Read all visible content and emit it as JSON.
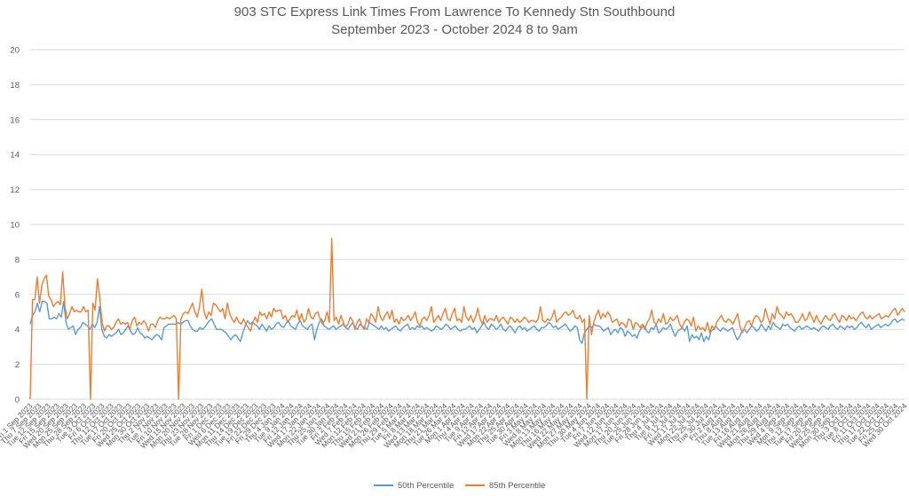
{
  "chart_data": {
    "type": "line",
    "title": "903 STC Express Link Times From Lawrence To Kennedy Stn Southbound",
    "subtitle": "September 2023 - October 2024 8 to 9am",
    "xlabel": "",
    "ylabel": "",
    "ylim": [
      0,
      20
    ],
    "yticks": [
      0,
      2,
      4,
      6,
      8,
      10,
      12,
      14,
      16,
      18,
      20
    ],
    "grid": true,
    "legend": "bottom-center",
    "colors": {
      "p50": "#5b9bd5",
      "p85": "#ed7d31",
      "grid": "#d9d9d9",
      "text": "#595959"
    },
    "xtick_labels": [
      "Fri 1 Sep 2023",
      "Thu 7 Sep 2023",
      "Tue 12 Sep 2023",
      "Fri 15 Sep 2023",
      "Wed 20 Sep 2023",
      "Mon 25 Sep 2023",
      "Thu 28 Sep 2023",
      "Tue 3 Oct 2023",
      "Fri 6 Oct 2023",
      "Thu 12 Oct 2023",
      "Tue 17 Oct 2023",
      "Fri 20 Oct 2023",
      "Wed 25 Oct 2023",
      "Mon 30 Oct 2023",
      "Thu 2 Nov 2023",
      "Tue 7 Nov 2023",
      "Fri 10 Nov 2023",
      "Wed 15 Nov 2023",
      "Mon 20 Nov 2023",
      "Thu 23 Nov 2023",
      "Tue 28 Nov 2023",
      "Fri 1 Dec 2023",
      "Wed 6 Dec 2023",
      "Mon 11 Dec 2023",
      "Thu 14 Dec 2023",
      "Tue 19 Dec 2023",
      "Fri 22 Dec 2023",
      "Fri 29 Dec 2023",
      "Thu 4 Jan 2024",
      "Tue 9 Jan 2024",
      "Fri 12 Jan 2024",
      "Wed 17 Jan 2024",
      "Mon 22 Jan 2024",
      "Thu 25 Jan 2024",
      "Tue 30 Jan 2024",
      "Fri 2 Feb 2024",
      "Wed 7 Feb 2024",
      "Mon 12 Feb 2024",
      "Thu 15 Feb 2024",
      "Wed 21 Feb 2024",
      "Mon 26 Feb 2024",
      "Thu 29 Feb 2024",
      "Tue 5 Mar 2024",
      "Fri 8 Mar 2024",
      "Wed 13 Mar 2024",
      "Mon 18 Mar 2024",
      "Thu 21 Mar 2024",
      "Tue 26 Mar 2024",
      "Mon 1 Apr 2024",
      "Thu 4 Apr 2024",
      "Tue 9 Apr 2024",
      "Fri 12 Apr 2024",
      "Wed 17 Apr 2024",
      "Mon 22 Apr 2024",
      "Thu 25 Apr 2024",
      "Tue 30 Apr 2024",
      "Fri 3 May 2024",
      "Wed 8 May 2024",
      "Mon 13 May 2024",
      "Thu 16 May 2024",
      "Wed 22 May 2024",
      "Mon 27 May 2024",
      "Thu 30 May 2024",
      "Tue 4 Jun 2024",
      "Fri 7 Jun 2024",
      "Wed 12 Jun 2024",
      "Mon 17 Jun 2024",
      "Thu 20 Jun 2024",
      "Tue 25 Jun 2024",
      "Fri 28 Jun 2024",
      "Thu 4 Jul 2024",
      "Tue 9 Jul 2024",
      "Fri 12 Jul 2024",
      "Wed 17 Jul 2024",
      "Mon 22 Jul 2024",
      "Thu 25 Jul 2024",
      "Tue 30 Jul 2024",
      "Fri 2 Aug 2024",
      "Thu 8 Aug 2024",
      "Tue 13 Aug 2024",
      "Fri 16 Aug 2024",
      "Wed 21 Aug 2024",
      "Mon 26 Aug 2024",
      "Thu 29 Aug 2024",
      "Wed 4 Sep 2024",
      "Mon 9 Sep 2024",
      "Thu 12 Sep 2024",
      "Tue 17 Sep 2024",
      "Fri 20 Sep 2024",
      "Wed 25 Sep 2024",
      "Mon 30 Sep 2024",
      "Thu 3 Oct 2024",
      "Tue 8 Oct 2024",
      "Fri 11 Oct 2024",
      "Thu 17 Oct 2024",
      "Tue 22 Oct 2024",
      "Fri 25 Oct 2024",
      "Wed 30 Oct 2024"
    ],
    "series": [
      {
        "name": "50th Percentile",
        "values": [
          4.3,
          4.8,
          5.0,
          5.5,
          5.0,
          5.6,
          5.6,
          5.5,
          4.6,
          4.6,
          4.7,
          4.6,
          4.9,
          4.7,
          5.6,
          4.4,
          4.0,
          4.1,
          4.2,
          3.7,
          4.0,
          4.1,
          4.4,
          4.3,
          4.2,
          4.0,
          4.3,
          4.1,
          4.4,
          5.3,
          4.0,
          3.6,
          3.5,
          3.7,
          3.6,
          3.7,
          3.8,
          4.0,
          3.7,
          3.8,
          4.0,
          4.2,
          3.9,
          3.7,
          3.8,
          4.1,
          3.8,
          3.7,
          3.5,
          3.6,
          3.5,
          3.4,
          3.6,
          3.7,
          3.6,
          3.4,
          4.1,
          4.2,
          4.3,
          4.3,
          4.3,
          4.3,
          4.4,
          4.3,
          4.4,
          4.5,
          4.5,
          4.2,
          4.0,
          3.9,
          3.9,
          4.1,
          4.0,
          4.1,
          4.3,
          4.5,
          4.6,
          4.3,
          4.0,
          4.0,
          4.0,
          3.9,
          3.8,
          3.6,
          3.4,
          3.6,
          3.7,
          3.5,
          3.3,
          3.8,
          4.2,
          4.5,
          4.3,
          4.4,
          4.3,
          4.2,
          4.0,
          4.3,
          4.1,
          3.9,
          4.2,
          4.0,
          4.1,
          4.3,
          4.4,
          4.2,
          4.1,
          4.3,
          4.5,
          4.2,
          4.1,
          4.0,
          4.3,
          4.5,
          4.2,
          4.1,
          4.0,
          4.2,
          4.3,
          3.4,
          4.0,
          4.4,
          4.6,
          4.2,
          4.1,
          4.0,
          4.1,
          4.2,
          4.0,
          4.1,
          4.2,
          4.3,
          4.1,
          4.0,
          4.2,
          4.4,
          4.1,
          4.0,
          4.3,
          4.2,
          4.1,
          4.0,
          4.4,
          4.3,
          4.2,
          4.1,
          4.0,
          4.2,
          4.0,
          4.1,
          3.9,
          4.0,
          4.1,
          4.2,
          4.0,
          3.9,
          4.1,
          4.2,
          4.3,
          4.0,
          4.1,
          4.0,
          4.2,
          4.1,
          4.2,
          4.0,
          4.1,
          4.0,
          3.9,
          4.0,
          4.2,
          4.1,
          4.0,
          4.1,
          4.3,
          4.2,
          4.0,
          4.1,
          4.2,
          4.0,
          3.9,
          4.0,
          4.0,
          4.1,
          4.2,
          4.0,
          4.1,
          3.8,
          4.0,
          4.2,
          4.4,
          4.1,
          4.0,
          4.3,
          4.2,
          4.0,
          4.1,
          4.3,
          4.0,
          3.9,
          4.1,
          4.2,
          4.0,
          3.8,
          4.1,
          4.2,
          4.0,
          4.1,
          3.9,
          4.0,
          4.1,
          4.2,
          4.0,
          3.9,
          4.1,
          4.1,
          4.2,
          4.4,
          4.3,
          4.1,
          4.2,
          4.0,
          4.1,
          4.2,
          4.3,
          4.1,
          3.9,
          4.0,
          4.2,
          4.1,
          3.4,
          3.2,
          3.8,
          4.0,
          4.2,
          4.1,
          4.3,
          4.2,
          4.2,
          4.1,
          3.9,
          4.0,
          4.1,
          3.7,
          3.9,
          4.0,
          3.8,
          4.1,
          4.0,
          3.6,
          3.9,
          3.8,
          3.6,
          3.7,
          3.5,
          3.9,
          4.1,
          4.2,
          3.9,
          3.8,
          4.1,
          4.0,
          4.3,
          3.8,
          3.9,
          4.1,
          4.0,
          4.1,
          4.3,
          3.9,
          3.6,
          3.9,
          4.0,
          4.1,
          3.9,
          4.2,
          3.3,
          3.7,
          3.5,
          3.6,
          3.4,
          3.8,
          3.3,
          3.6,
          3.4,
          3.9,
          4.0,
          4.2,
          4.0,
          3.9,
          4.1,
          4.0,
          3.9,
          4.0,
          4.1,
          3.7,
          3.4,
          3.6,
          3.9,
          4.0,
          3.8,
          4.0,
          4.2,
          4.1,
          3.9,
          4.0,
          4.3,
          4.1,
          3.9,
          4.2,
          4.0,
          4.4,
          4.2,
          4.1,
          4.0,
          4.3,
          4.2,
          4.3,
          4.1,
          4.0,
          3.9,
          4.1,
          4.2,
          4.0,
          4.1,
          4.2,
          4.1,
          4.0,
          4.1,
          4.0,
          3.9,
          4.1,
          4.2,
          4.1,
          4.0,
          4.2,
          4.3,
          4.1,
          4.0,
          4.2,
          4.1,
          4.0,
          4.2,
          4.1,
          4.2,
          4.0,
          4.1,
          4.3,
          4.4,
          4.2,
          4.1,
          4.3,
          4.0,
          4.1,
          4.2,
          4.3,
          4.1,
          4.2,
          4.3,
          4.2,
          4.3,
          4.5,
          4.6,
          4.4,
          4.5,
          4.6,
          4.5
        ]
      },
      {
        "name": "85th Percentile",
        "values": [
          0.0,
          5.7,
          5.7,
          7.0,
          5.5,
          6.5,
          6.9,
          7.1,
          5.9,
          5.7,
          5.3,
          5.5,
          5.6,
          5.4,
          7.3,
          5.3,
          4.6,
          4.9,
          5.3,
          5.0,
          5.1,
          5.0,
          5.0,
          5.3,
          5.0,
          5.1,
          0.0,
          5.5,
          5.1,
          6.9,
          5.8,
          4.4,
          3.9,
          4.2,
          4.2,
          4.0,
          4.1,
          4.4,
          4.6,
          4.3,
          4.4,
          4.3,
          4.4,
          4.0,
          4.5,
          4.7,
          4.2,
          4.4,
          4.3,
          4.5,
          4.3,
          3.9,
          4.3,
          4.3,
          4.1,
          4.5,
          4.7,
          4.6,
          4.6,
          4.7,
          4.6,
          4.7,
          4.8,
          4.6,
          0.0,
          4.6,
          4.9,
          5.0,
          4.9,
          5.2,
          5.5,
          5.0,
          4.7,
          5.3,
          6.3,
          5.0,
          4.6,
          5.0,
          4.8,
          5.5,
          5.4,
          5.2,
          5.0,
          5.2,
          4.6,
          5.5,
          4.9,
          4.6,
          4.4,
          4.7,
          4.4,
          4.3,
          4.6,
          4.3,
          4.1,
          3.9,
          4.4,
          4.7,
          4.4,
          5.0,
          4.8,
          4.9,
          4.6,
          5.0,
          4.7,
          5.2,
          5.0,
          5.1,
          5.1,
          4.6,
          4.8,
          4.4,
          4.6,
          4.8,
          4.7,
          5.1,
          4.5,
          4.9,
          4.4,
          4.6,
          5.2,
          4.7,
          4.6,
          4.9,
          5.0,
          4.6,
          4.3,
          4.5,
          5.0,
          4.4,
          9.2,
          4.5,
          4.7,
          4.3,
          4.8,
          4.4,
          4.1,
          4.3,
          4.7,
          4.5,
          4.0,
          4.4,
          4.6,
          4.2,
          4.0,
          4.6,
          4.4,
          4.9,
          4.7,
          4.4,
          5.3,
          4.7,
          4.5,
          4.8,
          5.0,
          4.6,
          5.1,
          4.4,
          4.6,
          4.3,
          4.7,
          4.5,
          4.6,
          4.8,
          4.5,
          4.7,
          5.0,
          4.4,
          4.2,
          4.6,
          4.7,
          4.5,
          4.8,
          5.3,
          4.4,
          4.6,
          4.8,
          4.5,
          4.9,
          5.2,
          4.6,
          4.5,
          4.9,
          5.2,
          4.5,
          4.6,
          4.4,
          5.3,
          4.7,
          4.5,
          4.8,
          4.4,
          4.7,
          5.2,
          4.6,
          4.3,
          4.8,
          4.4,
          4.6,
          4.6,
          4.5,
          4.8,
          4.4,
          4.6,
          4.7,
          4.5,
          4.3,
          4.7,
          4.6,
          4.4,
          4.6,
          4.4,
          4.5,
          4.7,
          4.6,
          4.4,
          4.5,
          4.5,
          4.4,
          4.6,
          5.3,
          4.5,
          4.4,
          4.6,
          4.5,
          4.7,
          5.1,
          4.4,
          4.6,
          4.7,
          4.9,
          5.0,
          4.8,
          4.9,
          5.1,
          4.7,
          4.6,
          4.8,
          4.4,
          4.6,
          0.0,
          4.8,
          3.7,
          4.4,
          4.8,
          5.1,
          4.6,
          4.9,
          4.7,
          5.0,
          4.8,
          4.4,
          4.5,
          4.6,
          4.2,
          4.4,
          4.3,
          4.1,
          4.6,
          4.5,
          4.0,
          4.4,
          4.3,
          4.1,
          4.3,
          4.0,
          4.4,
          4.6,
          5.1,
          4.4,
          4.3,
          4.6,
          4.4,
          4.9,
          4.3,
          4.4,
          4.7,
          4.5,
          4.6,
          4.8,
          4.3,
          4.1,
          4.4,
          4.6,
          4.5,
          4.2,
          4.7,
          3.9,
          4.2,
          4.0,
          4.1,
          3.9,
          4.4,
          3.8,
          4.2,
          4.0,
          4.4,
          4.6,
          4.8,
          4.5,
          4.4,
          4.6,
          4.5,
          4.3,
          4.6,
          4.9,
          4.2,
          3.8,
          4.1,
          4.4,
          4.5,
          4.2,
          4.6,
          4.8,
          4.7,
          4.4,
          4.5,
          5.2,
          4.7,
          4.3,
          4.9,
          4.6,
          5.3,
          4.9,
          4.8,
          4.6,
          5.0,
          4.8,
          4.9,
          4.7,
          4.4,
          4.4,
          4.6,
          4.9,
          4.5,
          4.6,
          5.0,
          4.7,
          4.4,
          4.8,
          4.5,
          4.3,
          4.6,
          4.8,
          4.6,
          4.5,
          4.8,
          4.9,
          4.6,
          4.4,
          4.8,
          4.7,
          4.5,
          4.8,
          4.6,
          4.7,
          4.5,
          4.7,
          4.9,
          5.0,
          4.7,
          4.6,
          4.8,
          4.6,
          4.7,
          4.8,
          4.9,
          4.6,
          4.7,
          4.8,
          4.7,
          4.9,
          5.1,
          5.2,
          4.8,
          5.0,
          5.2,
          5.0
        ]
      }
    ]
  }
}
